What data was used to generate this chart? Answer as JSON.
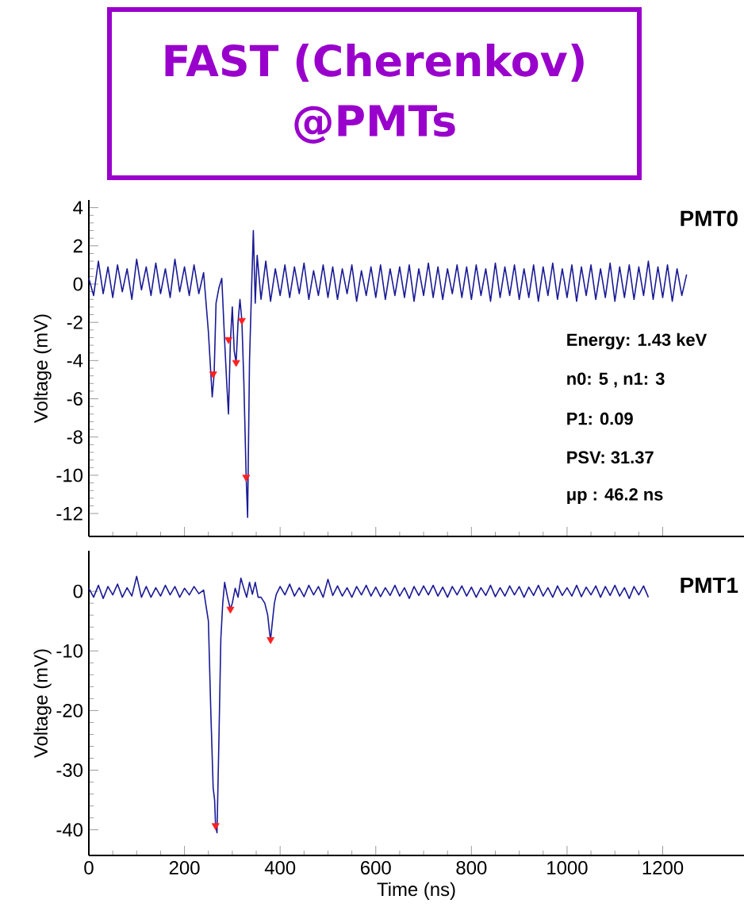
{
  "chart_data": [
    {
      "type": "line",
      "title": "FAST (Cherenkov) @PMTs",
      "ylabel": "Voltage (mV)",
      "xlim": [
        0,
        1370
      ],
      "ylim": [
        -13.2,
        4.4
      ],
      "xticks": [
        0,
        200,
        400,
        600,
        800,
        1000,
        1200
      ],
      "yticks": [
        -12,
        -10,
        -8,
        -6,
        -4,
        -2,
        0,
        2,
        4
      ],
      "tick_labels": "y",
      "annotations": [
        "PMT0",
        "Energy: 1.43 keV",
        "n0: 5 , n1: 3",
        "P1: 0.09",
        "PSV: 31.37",
        "μp : 46.2 ns"
      ],
      "series": [
        {
          "color": "#1a1a96",
          "x": [
            0,
            10,
            20,
            30,
            40,
            50,
            60,
            70,
            80,
            90,
            100,
            110,
            120,
            130,
            140,
            150,
            160,
            170,
            180,
            190,
            200,
            210,
            220,
            230,
            240,
            250,
            258,
            262,
            266,
            272,
            278,
            284,
            288,
            292,
            296,
            300,
            304,
            308,
            312,
            316,
            320,
            324,
            329,
            332,
            336,
            340,
            344,
            348,
            352,
            360,
            370,
            380,
            390,
            400,
            410,
            420,
            430,
            440,
            450,
            460,
            470,
            480,
            490,
            500,
            510,
            520,
            530,
            540,
            550,
            560,
            570,
            580,
            590,
            600,
            610,
            620,
            630,
            640,
            650,
            660,
            670,
            680,
            690,
            700,
            710,
            720,
            730,
            740,
            750,
            760,
            770,
            780,
            790,
            800,
            810,
            820,
            830,
            840,
            850,
            860,
            870,
            880,
            890,
            900,
            910,
            920,
            930,
            940,
            950,
            960,
            970,
            980,
            990,
            1000,
            1010,
            1020,
            1030,
            1040,
            1050,
            1060,
            1070,
            1080,
            1090,
            1100,
            1110,
            1120,
            1130,
            1140,
            1150,
            1160,
            1170,
            1180,
            1190,
            1200,
            1210,
            1220,
            1230,
            1240,
            1250
          ],
          "values": [
            0.3,
            -0.6,
            1.2,
            -0.5,
            0.9,
            -0.7,
            1.0,
            -0.4,
            0.8,
            -0.8,
            1.3,
            -0.3,
            0.9,
            -0.6,
            1.1,
            -0.5,
            0.8,
            -0.7,
            1.3,
            -0.4,
            0.9,
            -0.6,
            1.0,
            -0.5,
            0.6,
            -2.5,
            -5.9,
            -4.7,
            -1.0,
            -0.2,
            0.3,
            -3.0,
            -5.0,
            -6.8,
            -3.0,
            -1.2,
            -3.5,
            -4.1,
            -2.0,
            -0.8,
            -1.9,
            -5.0,
            -10.1,
            -12.2,
            -4.0,
            -0.5,
            2.8,
            -1.0,
            1.5,
            -0.8,
            1.2,
            -0.9,
            0.8,
            -0.6,
            1.0,
            -0.7,
            0.9,
            -0.5,
            1.1,
            -0.8,
            0.7,
            -0.6,
            1.0,
            -0.7,
            0.9,
            -0.8,
            0.8,
            -0.5,
            1.0,
            -0.9,
            0.7,
            -0.6,
            0.9,
            -0.7,
            1.0,
            -0.8,
            0.8,
            -0.6,
            0.9,
            -0.7,
            1.0,
            -0.9,
            0.8,
            -0.6,
            1.1,
            -0.7,
            0.9,
            -0.8,
            0.8,
            -0.5,
            1.0,
            -0.7,
            0.9,
            -0.8,
            1.0,
            -0.6,
            0.8,
            -0.9,
            1.1,
            -0.7,
            0.9,
            -0.6,
            1.0,
            -0.8,
            0.8,
            -0.7,
            1.0,
            -0.9,
            0.9,
            -0.6,
            1.1,
            -0.8,
            0.8,
            -0.7,
            1.0,
            -0.9,
            0.9,
            -0.6,
            1.0,
            -0.8,
            0.8,
            -0.7,
            1.1,
            -0.9,
            0.9,
            -0.7,
            1.0,
            -0.8,
            0.9,
            -0.6,
            1.2,
            -0.8,
            0.9,
            -0.7,
            1.0,
            -0.9,
            0.8,
            -0.6,
            0.5
          ]
        },
        {
          "type": "scatter",
          "color": "#ff2020",
          "marker": "triangle",
          "x": [
            260,
            292,
            308,
            320,
            329
          ],
          "values": [
            -4.7,
            -2.9,
            -4.1,
            -1.9,
            -10.1
          ]
        }
      ]
    },
    {
      "type": "line",
      "xlabel": "Time (ns)",
      "ylabel": "Voltage (mV)",
      "xlim": [
        0,
        1370
      ],
      "ylim": [
        -44.3,
        6.8
      ],
      "xticks": [
        0,
        200,
        400,
        600,
        800,
        1000,
        1200
      ],
      "yticks": [
        -40,
        -30,
        -20,
        -10,
        0
      ],
      "annotations": [
        "PMT1"
      ],
      "series": [
        {
          "color": "#1a1a96",
          "x": [
            0,
            10,
            20,
            30,
            40,
            50,
            60,
            70,
            80,
            90,
            100,
            110,
            120,
            130,
            140,
            150,
            160,
            170,
            180,
            190,
            200,
            210,
            220,
            230,
            240,
            250,
            255,
            260,
            263,
            265,
            268,
            272,
            276,
            280,
            284,
            290,
            296,
            300,
            306,
            312,
            318,
            324,
            330,
            336,
            342,
            348,
            354,
            360,
            368,
            374,
            378,
            380,
            384,
            388,
            392,
            400,
            410,
            420,
            430,
            440,
            450,
            460,
            470,
            480,
            490,
            500,
            510,
            520,
            530,
            540,
            550,
            560,
            570,
            580,
            590,
            600,
            610,
            620,
            630,
            640,
            650,
            660,
            670,
            680,
            690,
            700,
            710,
            720,
            730,
            740,
            750,
            760,
            770,
            780,
            790,
            800,
            810,
            820,
            830,
            840,
            850,
            860,
            870,
            880,
            890,
            900,
            910,
            920,
            930,
            940,
            950,
            960,
            970,
            980,
            990,
            1000,
            1010,
            1020,
            1030,
            1040,
            1050,
            1060,
            1070,
            1080,
            1090,
            1100,
            1110,
            1120,
            1130,
            1140,
            1150,
            1160,
            1170
          ],
          "values": [
            0.5,
            -1.0,
            1.0,
            -1.2,
            0.8,
            -0.6,
            1.2,
            -1.0,
            0.6,
            -0.8,
            2.5,
            -1.0,
            0.8,
            -1.0,
            0.6,
            -0.8,
            1.0,
            -0.6,
            0.8,
            -1.0,
            0.5,
            -0.6,
            0.8,
            -0.4,
            0.2,
            -5.0,
            -20.0,
            -33.0,
            -35.0,
            -39.3,
            -40.5,
            -25.0,
            -8.0,
            -2.0,
            1.5,
            -1.0,
            -3.0,
            -2.0,
            0.5,
            -1.0,
            2.2,
            0.5,
            -1.0,
            1.5,
            -0.5,
            1.5,
            -1.0,
            -1.0,
            -2.0,
            -4.0,
            -7.0,
            -8.1,
            -5.0,
            -2.0,
            -0.5,
            0.8,
            -0.6,
            1.2,
            -0.8,
            0.6,
            -0.9,
            1.0,
            -0.6,
            0.8,
            -1.0,
            2.0,
            -0.7,
            0.9,
            -0.8,
            0.6,
            -1.0,
            0.8,
            -0.6,
            1.0,
            -0.8,
            0.7,
            -0.9,
            0.6,
            -0.7,
            1.0,
            -0.8,
            0.6,
            -1.2,
            0.8,
            -0.7,
            0.9,
            -0.6,
            1.0,
            -0.8,
            0.7,
            -1.0,
            0.8,
            -0.6,
            0.9,
            -0.8,
            0.7,
            -1.0,
            0.6,
            -0.7,
            1.0,
            -0.9,
            0.6,
            -0.8,
            0.9,
            -0.6,
            0.8,
            -1.0,
            0.7,
            -0.7,
            1.0,
            -0.8,
            0.6,
            -1.0,
            0.9,
            -0.7,
            0.6,
            -0.8,
            1.0,
            -0.9,
            0.7,
            -0.6,
            0.9,
            -1.0,
            0.8,
            -0.7,
            1.0,
            -0.8,
            0.6,
            -1.2,
            0.8,
            -0.6,
            0.9,
            -1.0
          ]
        },
        {
          "type": "scatter",
          "color": "#ff2020",
          "marker": "triangle",
          "x": [
            265,
            296,
            380
          ],
          "values": [
            -39.3,
            -3.0,
            -8.1
          ]
        }
      ]
    }
  ]
}
